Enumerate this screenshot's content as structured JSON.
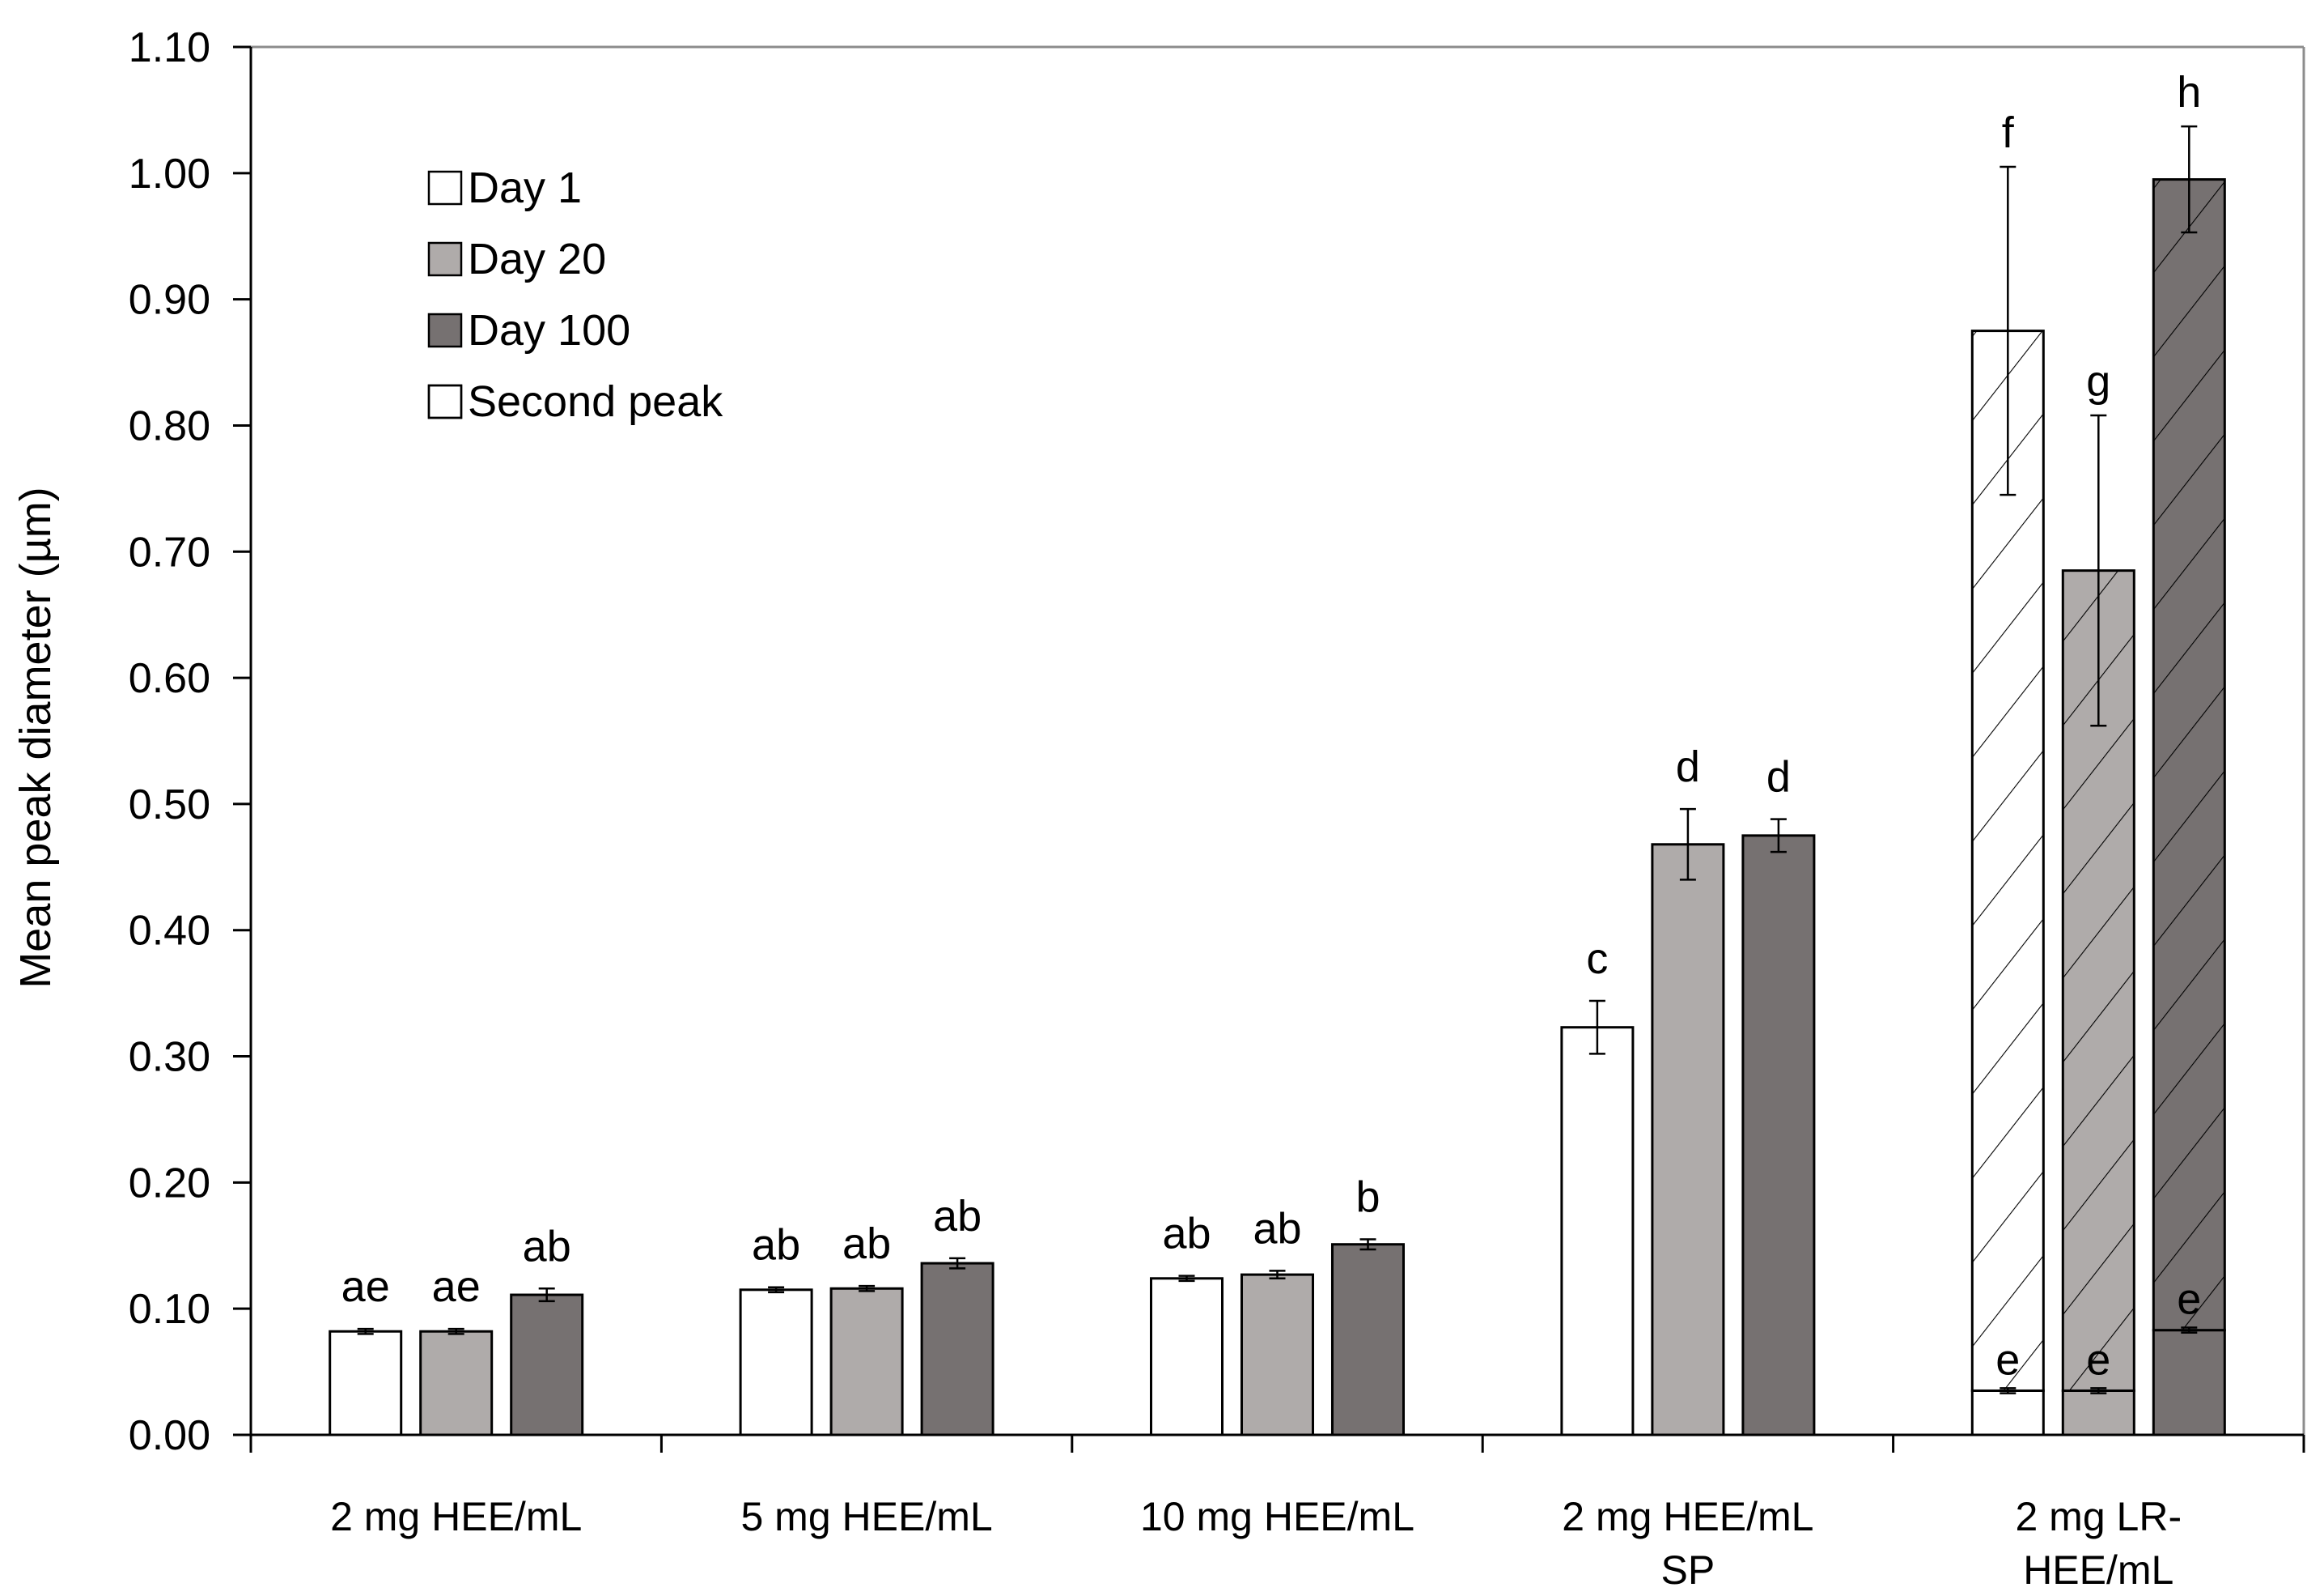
{
  "chart_data": {
    "type": "bar",
    "ylabel": "Mean peak diameter (µm)",
    "xlabel": "",
    "ylim": [
      0,
      1.1
    ],
    "yticks": [
      "0.00",
      "0.10",
      "0.20",
      "0.30",
      "0.40",
      "0.50",
      "0.60",
      "0.70",
      "0.80",
      "0.90",
      "1.00",
      "1.10"
    ],
    "legend_position": "top-left",
    "categories": [
      [
        "2 mg HEE/mL"
      ],
      [
        "5 mg HEE/mL"
      ],
      [
        "10 mg HEE/mL"
      ],
      [
        "2 mg HEE/mL",
        "SP"
      ],
      [
        "2 mg LR-",
        "HEE/mL"
      ]
    ],
    "series": [
      {
        "name": "Day 1",
        "color": "#ffffff",
        "values": [
          0.082,
          0.115,
          0.124,
          0.323,
          0.035
        ],
        "errors": [
          0.002,
          0.002,
          0.002,
          0.021,
          0.002
        ],
        "labels": [
          "ae",
          "ab",
          "ab",
          "c",
          "e"
        ]
      },
      {
        "name": "Day 20",
        "color": "#afabaa",
        "values": [
          0.082,
          0.116,
          0.127,
          0.468,
          0.035
        ],
        "errors": [
          0.002,
          0.002,
          0.003,
          0.028,
          0.002
        ],
        "labels": [
          "ae",
          "ab",
          "ab",
          "d",
          "e"
        ]
      },
      {
        "name": "Day 100",
        "color": "#767171",
        "values": [
          0.111,
          0.136,
          0.151,
          0.475,
          0.083
        ],
        "errors": [
          0.005,
          0.004,
          0.004,
          0.013,
          0.002
        ],
        "labels": [
          "ab",
          "ab",
          "b",
          "d",
          "e"
        ]
      }
    ],
    "second_peak": {
      "name": "Second peak",
      "category": 4,
      "bars": [
        {
          "series": 0,
          "value": 0.875,
          "error": 0.13,
          "label": "f"
        },
        {
          "series": 1,
          "value": 0.685,
          "error": 0.123,
          "label": "g"
        },
        {
          "series": 2,
          "value": 0.995,
          "error": 0.042,
          "label": "h"
        }
      ]
    }
  },
  "legend": {
    "items": [
      {
        "name": "Day 1",
        "color": "#ffffff",
        "pattern": "none"
      },
      {
        "name": "Day 20",
        "color": "#afabaa",
        "pattern": "none"
      },
      {
        "name": "Day 100",
        "color": "#767171",
        "pattern": "none"
      },
      {
        "name": "Second peak",
        "color": "#ffffff",
        "pattern": "hatch"
      }
    ]
  }
}
